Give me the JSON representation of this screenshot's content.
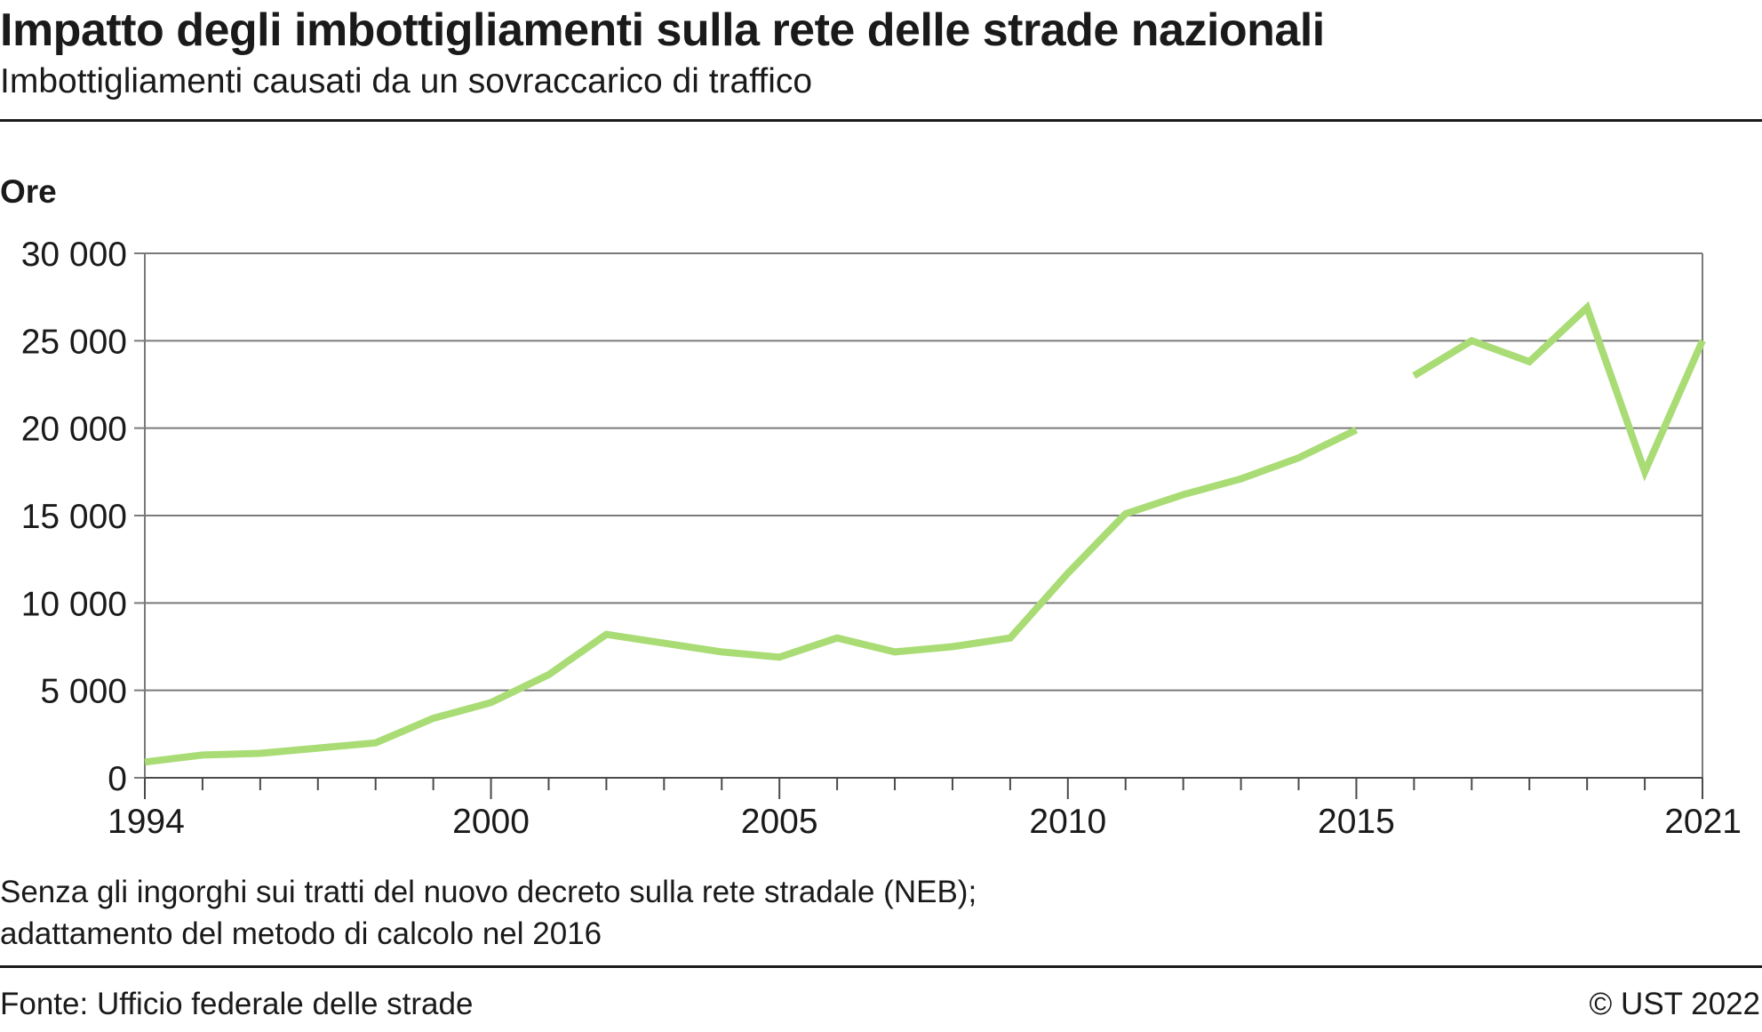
{
  "header": {
    "title": "Impatto degli imbottigliamenti sulla rete delle strade nazionali",
    "subtitle": "Imbottigliamenti causati da un sovraccarico di traffico"
  },
  "chart_data": {
    "type": "line",
    "title": "Impatto degli imbottigliamenti sulla rete delle strade nazionali",
    "subtitle": "Imbottigliamenti causati da un sovraccarico di traffico",
    "ylabel": "Ore",
    "xlabel": "",
    "xlim": [
      1994,
      2021
    ],
    "ylim": [
      0,
      30000
    ],
    "x_ticks": [
      1994,
      2000,
      2005,
      2010,
      2015,
      2021
    ],
    "y_ticks": [
      0,
      5000,
      10000,
      15000,
      20000,
      25000,
      30000
    ],
    "y_tick_labels": [
      "0",
      "5 000",
      "10 000",
      "15 000",
      "20 000",
      "25 000",
      "30 000"
    ],
    "grid": true,
    "line_color": "#a9dc74",
    "series": [
      {
        "segments": [
          {
            "x": [
              1994,
              1995,
              1996,
              1997,
              1998,
              1999,
              2000,
              2001,
              2002,
              2003,
              2004,
              2005,
              2006,
              2007,
              2008,
              2009,
              2010,
              2011,
              2012,
              2013,
              2014,
              2015
            ],
            "y": [
              900,
              1300,
              1400,
              1700,
              2000,
              3400,
              4300,
              5900,
              8200,
              7700,
              7200,
              6900,
              8000,
              7200,
              7500,
              8000,
              11700,
              15100,
              16200,
              17100,
              18300,
              19900
            ]
          },
          {
            "x": [
              2016,
              2017,
              2018,
              2019,
              2020,
              2021
            ],
            "y": [
              23000,
              25000,
              23800,
              26900,
              17500,
              25000
            ]
          }
        ]
      }
    ]
  },
  "footer": {
    "note_line1": "Senza gli ingorghi sui tratti del nuovo decreto sulla rete stradale (NEB);",
    "note_line2": "adattamento del metodo di calcolo nel 2016",
    "source": "Fonte: Ufficio federale delle strade",
    "copyright": "© UST 2022"
  }
}
